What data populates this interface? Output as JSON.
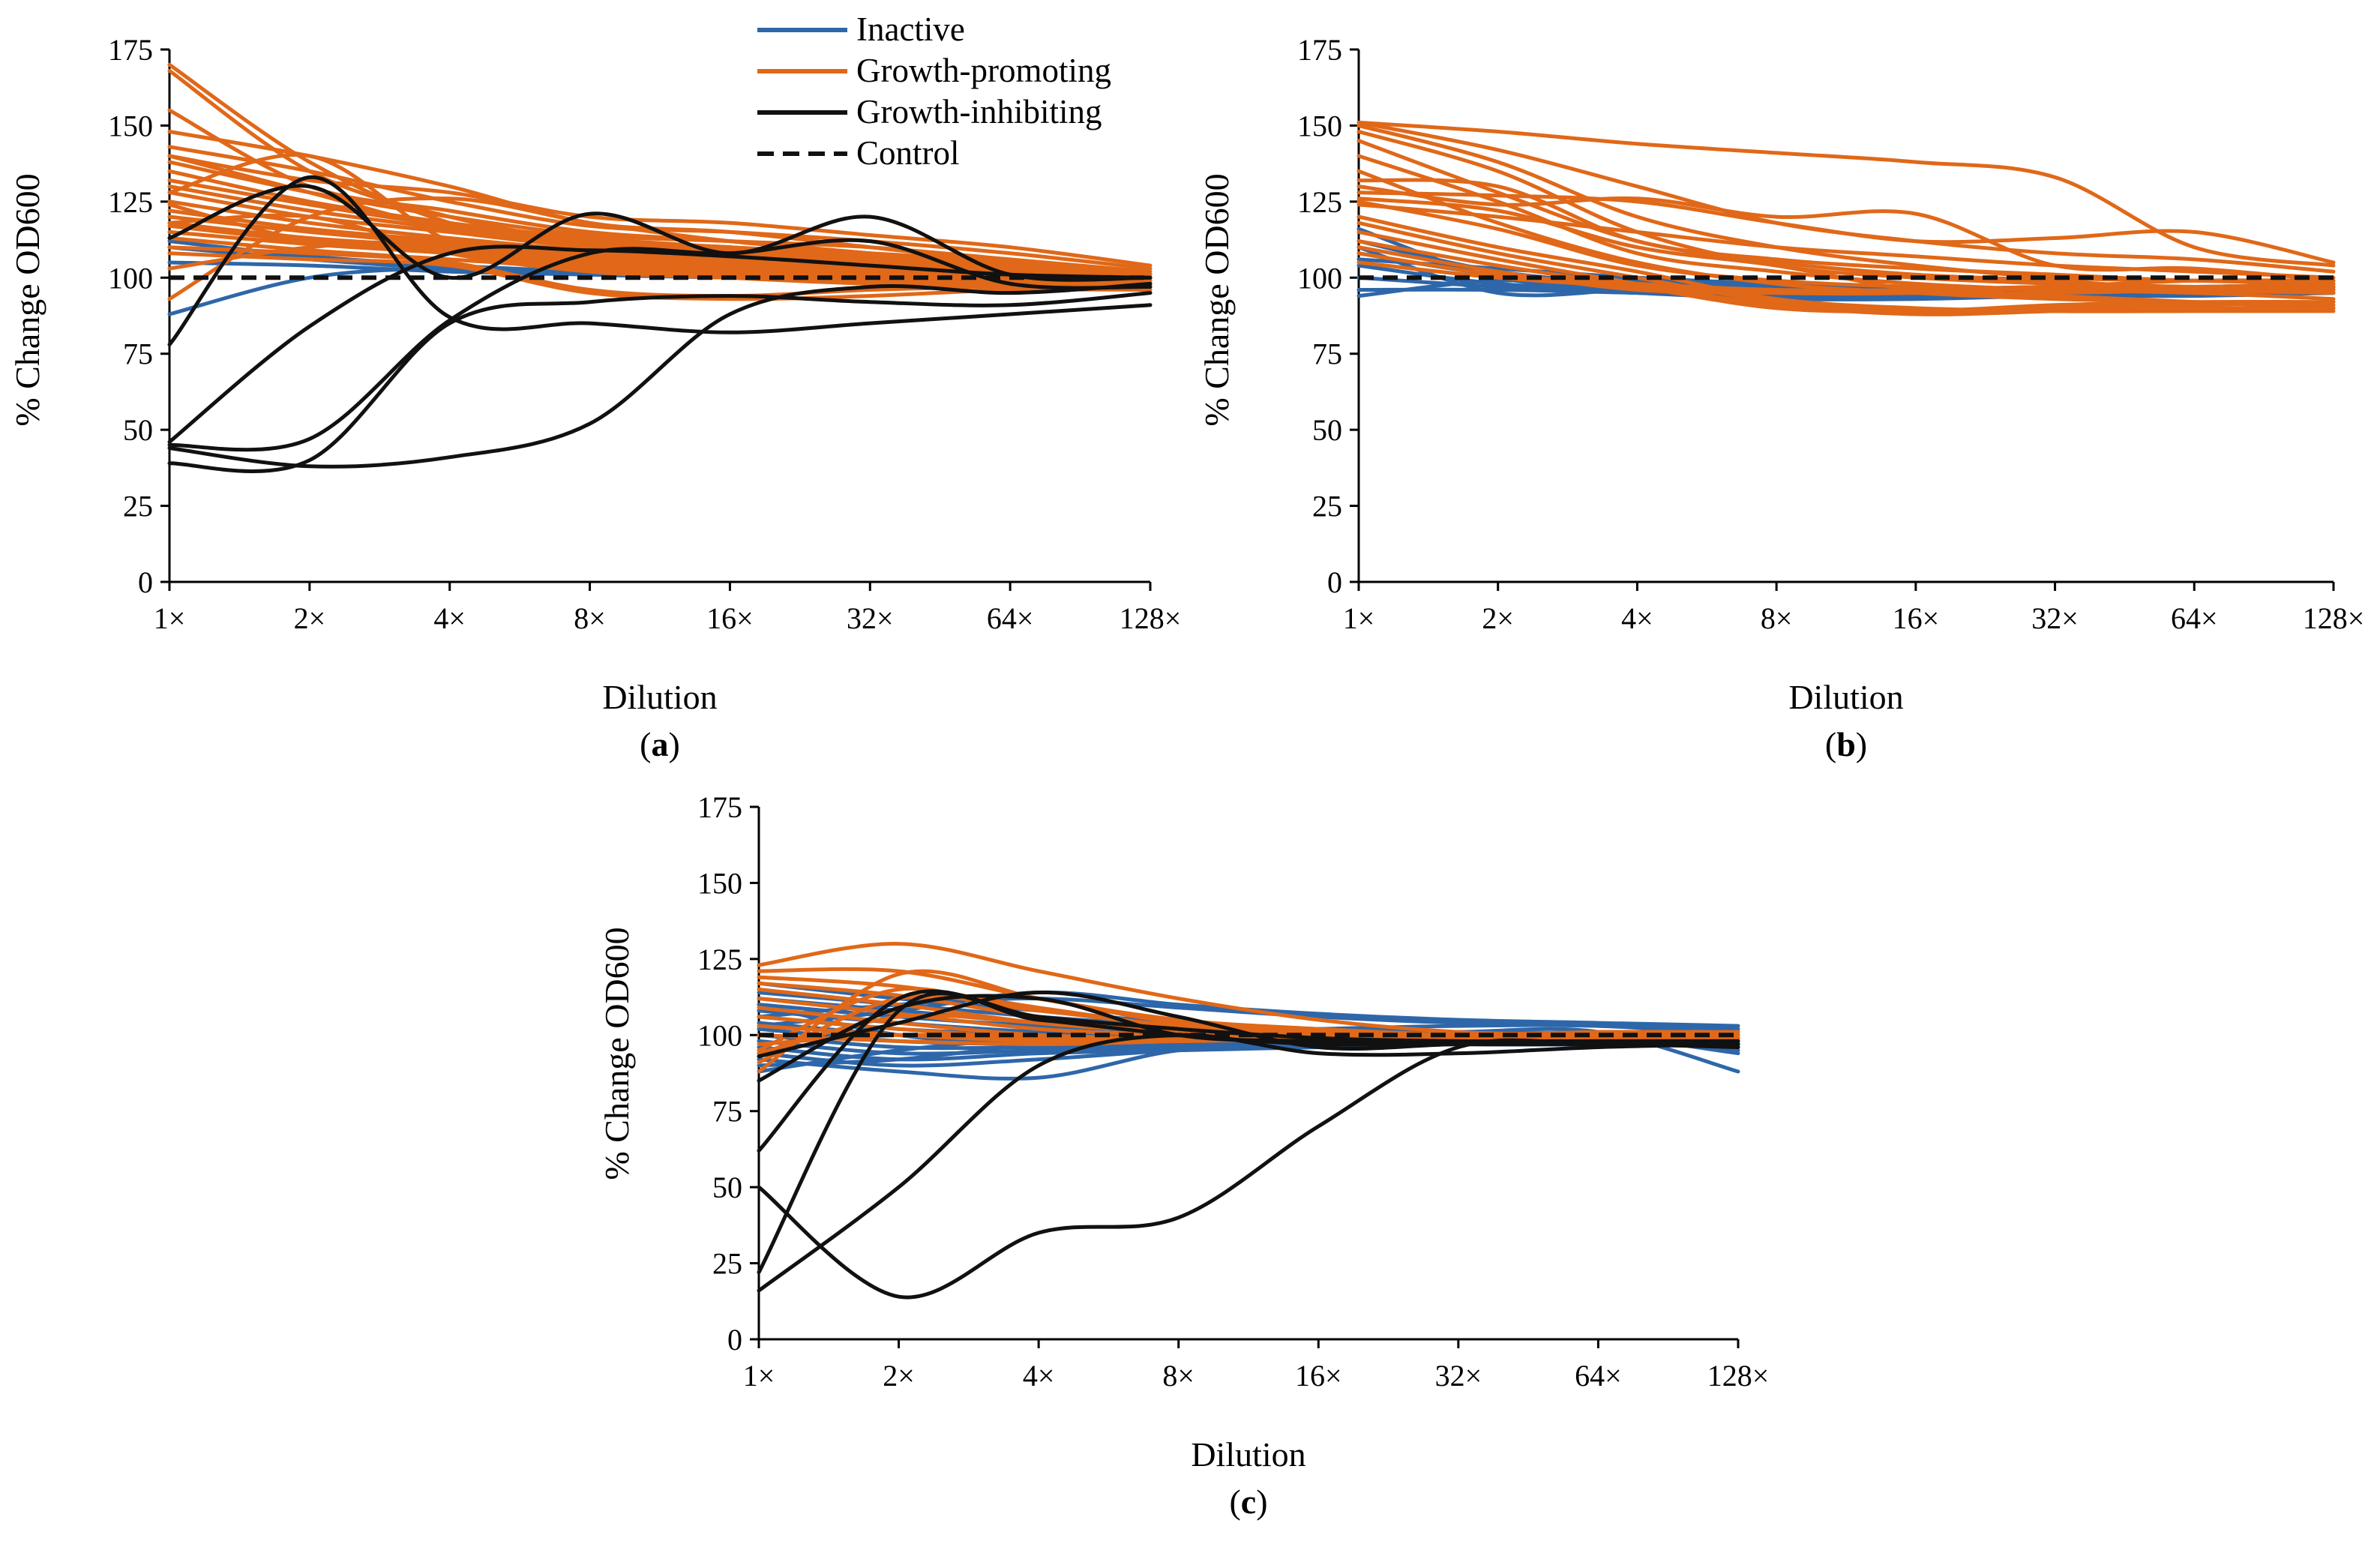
{
  "colors": {
    "inactive": "#2e67a9",
    "growth_promoting": "#e06818",
    "growth_inhibiting": "#111111",
    "control": "#111111"
  },
  "legend": {
    "inactive": "Inactive",
    "growth_promoting": "Growth-promoting",
    "growth_inhibiting": "Growth-inhibiting",
    "control": "Control"
  },
  "chart_data": [
    {
      "type": "line",
      "panel_label_open": "(",
      "panel_label_letter": "a",
      "panel_label_close": ")",
      "xlabel": "Dilution",
      "ylabel": "% Change OD600",
      "categories": [
        "1×",
        "2×",
        "4×",
        "8×",
        "16×",
        "32×",
        "64×",
        "128×"
      ],
      "ylim": [
        0,
        175
      ],
      "yticks": [
        0,
        25,
        50,
        75,
        100,
        125,
        150,
        175
      ],
      "control": [
        100,
        100,
        100,
        100,
        100,
        100,
        100,
        100
      ],
      "inactive": [
        [
          112,
          107,
          104,
          102,
          101,
          100,
          99,
          98
        ],
        [
          88,
          100,
          103,
          101,
          100,
          99,
          98,
          97
        ],
        [
          110,
          106,
          103,
          102,
          101,
          100,
          99,
          98
        ],
        [
          105,
          104,
          102,
          101,
          100,
          99,
          99,
          98
        ]
      ],
      "growth_promoting": [
        [
          170,
          138,
          118,
          110,
          108,
          106,
          104,
          100
        ],
        [
          168,
          135,
          120,
          112,
          110,
          106,
          103,
          101
        ],
        [
          155,
          130,
          122,
          115,
          112,
          108,
          104,
          100
        ],
        [
          148,
          140,
          130,
          118,
          115,
          110,
          105,
          101
        ],
        [
          143,
          135,
          125,
          117,
          115,
          112,
          108,
          103
        ],
        [
          140,
          132,
          128,
          120,
          118,
          114,
          110,
          104
        ],
        [
          138,
          128,
          120,
          114,
          112,
          110,
          106,
          102
        ],
        [
          135,
          125,
          118,
          113,
          110,
          108,
          105,
          101
        ],
        [
          132,
          124,
          117,
          112,
          110,
          107,
          104,
          100
        ],
        [
          130,
          122,
          116,
          111,
          109,
          106,
          103,
          100
        ],
        [
          128,
          120,
          115,
          110,
          108,
          106,
          103,
          100
        ],
        [
          125,
          118,
          113,
          109,
          107,
          105,
          102,
          99
        ],
        [
          122,
          116,
          112,
          108,
          106,
          104,
          101,
          99
        ],
        [
          120,
          115,
          111,
          107,
          105,
          103,
          101,
          99
        ],
        [
          118,
          113,
          110,
          106,
          104,
          102,
          100,
          98
        ],
        [
          117,
          112,
          109,
          105,
          103,
          101,
          99,
          98
        ],
        [
          115,
          111,
          108,
          104,
          102,
          100,
          99,
          97
        ],
        [
          113,
          109,
          106,
          103,
          101,
          100,
          98,
          97
        ],
        [
          110,
          108,
          105,
          96,
          94,
          96,
          97,
          97
        ],
        [
          108,
          106,
          104,
          95,
          93,
          94,
          96,
          96
        ],
        [
          103,
          110,
          112,
          108,
          106,
          104,
          101,
          99
        ],
        [
          93,
          120,
          126,
          118,
          112,
          108,
          104,
          100
        ],
        [
          118,
          120,
          108,
          102,
          100,
          99,
          98,
          97
        ],
        [
          128,
          140,
          112,
          104,
          101,
          100,
          98,
          97
        ],
        [
          124,
          112,
          108,
          103,
          100,
          98,
          97,
          96
        ],
        [
          140,
          128,
          116,
          110,
          108,
          106,
          104,
          102
        ]
      ],
      "growth_inhibiting": [
        [
          113,
          130,
          100,
          121,
          108,
          120,
          101,
          100
        ],
        [
          78,
          133,
          87,
          85,
          82,
          85,
          88,
          91
        ],
        [
          46,
          84,
          108,
          109,
          107,
          104,
          101,
          100
        ],
        [
          45,
          47,
          86,
          108,
          108,
          112,
          98,
          97
        ],
        [
          44,
          38,
          41,
          52,
          88,
          97,
          95,
          98
        ],
        [
          39,
          40,
          85,
          92,
          94,
          92,
          91,
          95
        ]
      ]
    },
    {
      "type": "line",
      "panel_label_open": "(",
      "panel_label_letter": "b",
      "panel_label_close": ")",
      "xlabel": "Dilution",
      "ylabel": "% Change OD600",
      "categories": [
        "1×",
        "2×",
        "4×",
        "8×",
        "16×",
        "32×",
        "64×",
        "128×"
      ],
      "ylim": [
        0,
        175
      ],
      "yticks": [
        0,
        25,
        50,
        75,
        100,
        125,
        150,
        175
      ],
      "control": [
        100,
        100,
        100,
        100,
        100,
        100,
        100,
        100
      ],
      "inactive": [
        [
          116,
          100,
          97,
          96,
          95,
          95,
          95,
          95
        ],
        [
          112,
          102,
          98,
          97,
          96,
          96,
          96,
          96
        ],
        [
          108,
          101,
          99,
          97,
          96,
          95,
          95,
          96
        ],
        [
          104,
          98,
          96,
          94,
          94,
          95,
          95,
          96
        ],
        [
          100,
          97,
          95,
          93,
          93,
          94,
          94,
          95
        ],
        [
          96,
          96,
          95,
          94,
          94,
          95,
          96,
          97
        ],
        [
          94,
          99,
          97,
          95,
          95,
          96,
          96,
          97
        ],
        [
          110,
          95,
          96,
          95,
          96,
          97,
          97,
          98
        ],
        [
          106,
          103,
          100,
          98,
          97,
          96,
          96,
          97
        ]
      ],
      "growth_promoting": [
        [
          151,
          148,
          144,
          141,
          138,
          133,
          110,
          104
        ],
        [
          151,
          142,
          130,
          118,
          112,
          108,
          106,
          102
        ],
        [
          150,
          138,
          120,
          110,
          104,
          100,
          99,
          98
        ],
        [
          148,
          135,
          115,
          104,
          100,
          98,
          97,
          96
        ],
        [
          145,
          128,
          112,
          105,
          101,
          99,
          96,
          95
        ],
        [
          140,
          125,
          108,
          102,
          98,
          96,
          95,
          93
        ],
        [
          135,
          118,
          105,
          98,
          95,
          93,
          92,
          91
        ],
        [
          130,
          124,
          126,
          120,
          121,
          104,
          103,
          99
        ],
        [
          128,
          127,
          125,
          118,
          112,
          113,
          115,
          105
        ],
        [
          126,
          122,
          110,
          104,
          96,
          94,
          92,
          90
        ],
        [
          124,
          120,
          115,
          110,
          107,
          104,
          102,
          100
        ],
        [
          120,
          110,
          102,
          93,
          90,
          89,
          89,
          89
        ],
        [
          118,
          108,
          100,
          92,
          89,
          90,
          91,
          92
        ],
        [
          115,
          106,
          98,
          91,
          88,
          89,
          90,
          90
        ],
        [
          112,
          104,
          97,
          90,
          89,
          91,
          92,
          92
        ],
        [
          110,
          102,
          96,
          95,
          95,
          95,
          96,
          97
        ],
        [
          108,
          101,
          98,
          96,
          96,
          97,
          97,
          98
        ],
        [
          105,
          100,
          97,
          95,
          95,
          97,
          99,
          99
        ],
        [
          132,
          130,
          112,
          106,
          103,
          101,
          99,
          99
        ],
        [
          125,
          116,
          104,
          99,
          97,
          96,
          96,
          96
        ]
      ],
      "growth_inhibiting": []
    },
    {
      "type": "line",
      "panel_label_open": "(",
      "panel_label_letter": "c",
      "panel_label_close": ")",
      "xlabel": "Dilution",
      "ylabel": "% Change OD600",
      "categories": [
        "1×",
        "2×",
        "4×",
        "8×",
        "16×",
        "32×",
        "64×",
        "128×"
      ],
      "ylim": [
        0,
        175
      ],
      "yticks": [
        0,
        25,
        50,
        75,
        100,
        125,
        150,
        175
      ],
      "control": [
        100,
        100,
        100,
        100,
        100,
        100,
        100,
        100
      ],
      "inactive": [
        [
          117,
          112,
          108,
          104,
          102,
          101,
          100,
          94
        ],
        [
          114,
          110,
          106,
          103,
          101,
          100,
          99,
          95
        ],
        [
          112,
          108,
          104,
          102,
          100,
          99,
          98,
          96
        ],
        [
          110,
          106,
          103,
          101,
          99,
          98,
          98,
          97
        ],
        [
          108,
          104,
          101,
          100,
          98,
          98,
          97,
          97
        ],
        [
          106,
          102,
          100,
          99,
          98,
          97,
          97,
          98
        ],
        [
          104,
          100,
          98,
          98,
          97,
          97,
          97,
          98
        ],
        [
          102,
          98,
          97,
          97,
          97,
          97,
          97,
          98
        ],
        [
          100,
          96,
          96,
          96,
          97,
          97,
          98,
          99
        ],
        [
          98,
          94,
          95,
          96,
          97,
          98,
          98,
          99
        ],
        [
          96,
          92,
          94,
          95,
          96,
          97,
          98,
          99
        ],
        [
          94,
          90,
          92,
          95,
          96,
          97,
          98,
          99
        ],
        [
          92,
          88,
          86,
          95,
          97,
          98,
          98,
          99
        ],
        [
          90,
          92,
          97,
          99,
          100,
          101,
          101,
          88
        ],
        [
          88,
          95,
          99,
          101,
          102,
          103,
          103,
          100
        ],
        [
          110,
          100,
          97,
          98,
          99,
          100,
          101,
          101
        ],
        [
          106,
          110,
          112,
          109,
          106,
          104,
          103,
          102
        ],
        [
          103,
          108,
          114,
          110,
          107,
          105,
          104,
          103
        ]
      ],
      "growth_promoting": [
        [
          123,
          130,
          121,
          112,
          105,
          101,
          100,
          99
        ],
        [
          121,
          121,
          112,
          105,
          102,
          100,
          99,
          99
        ],
        [
          119,
          116,
          109,
          103,
          101,
          100,
          99,
          99
        ],
        [
          117,
          113,
          106,
          102,
          100,
          99,
          99,
          99
        ],
        [
          115,
          110,
          104,
          101,
          100,
          99,
          99,
          100
        ],
        [
          112,
          107,
          102,
          100,
          99,
          99,
          99,
          100
        ],
        [
          109,
          104,
          100,
          99,
          99,
          99,
          100,
          100
        ],
        [
          106,
          102,
          99,
          98,
          99,
          99,
          100,
          100
        ],
        [
          103,
          100,
          98,
          98,
          99,
          100,
          100,
          101
        ],
        [
          100,
          98,
          97,
          98,
          99,
          100,
          100,
          101
        ],
        [
          97,
          100,
          99,
          99,
          100,
          100,
          100,
          100
        ],
        [
          94,
          106,
          104,
          101,
          100,
          100,
          100,
          100
        ],
        [
          91,
          112,
          108,
          103,
          101,
          100,
          100,
          100
        ],
        [
          88,
          120,
          112,
          104,
          101,
          100,
          100,
          101
        ],
        [
          95,
          115,
          106,
          102,
          100,
          100,
          101,
          101
        ]
      ],
      "growth_inhibiting": [
        [
          93,
          104,
          114,
          106,
          96,
          97,
          97,
          97
        ],
        [
          85,
          109,
          112,
          100,
          98,
          97,
          97,
          97
        ],
        [
          62,
          112,
          106,
          102,
          99,
          98,
          98,
          98
        ],
        [
          50,
          14,
          35,
          40,
          70,
          96,
          97,
          96
        ],
        [
          22,
          108,
          105,
          100,
          97,
          97,
          97,
          97
        ],
        [
          16,
          50,
          90,
          100,
          94,
          94,
          96,
          97
        ]
      ]
    }
  ]
}
